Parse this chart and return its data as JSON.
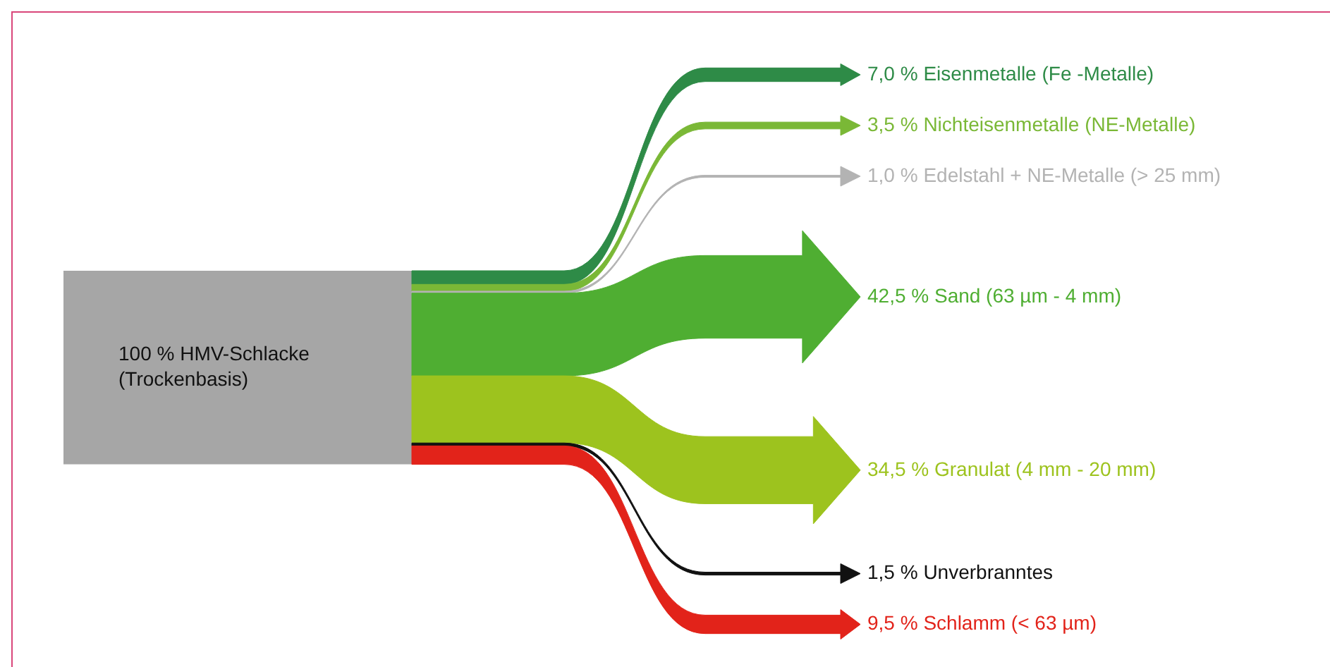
{
  "chart_data": {
    "type": "other",
    "annotations": [
      "100 % HMV-Schlacke",
      "(Trockenbasis)"
    ],
    "categories": [
      "Eisenmetalle (Fe -Metalle)",
      "Nichteisenmetalle (NE-Metalle)",
      "Edelstahl + NE-Metalle (> 25 mm)",
      "Sand (63 µm - 4 mm)",
      "Granulat (4 mm - 20 mm)",
      "Unverbranntes",
      "Schlamm (< 63 µm)"
    ],
    "values": [
      7.0,
      3.5,
      1.0,
      42.5,
      34.5,
      1.5,
      9.5
    ],
    "value_labels": [
      "7,0 %",
      "3,5 %",
      "1,0 %",
      "42,5 %",
      "34,5 %",
      "1,5 %",
      "9,5 %"
    ],
    "colors": [
      "#2e8b47",
      "#7ab836",
      "#b3b3b3",
      "#4fae32",
      "#9dc31e",
      "#111111",
      "#e2231a"
    ]
  }
}
